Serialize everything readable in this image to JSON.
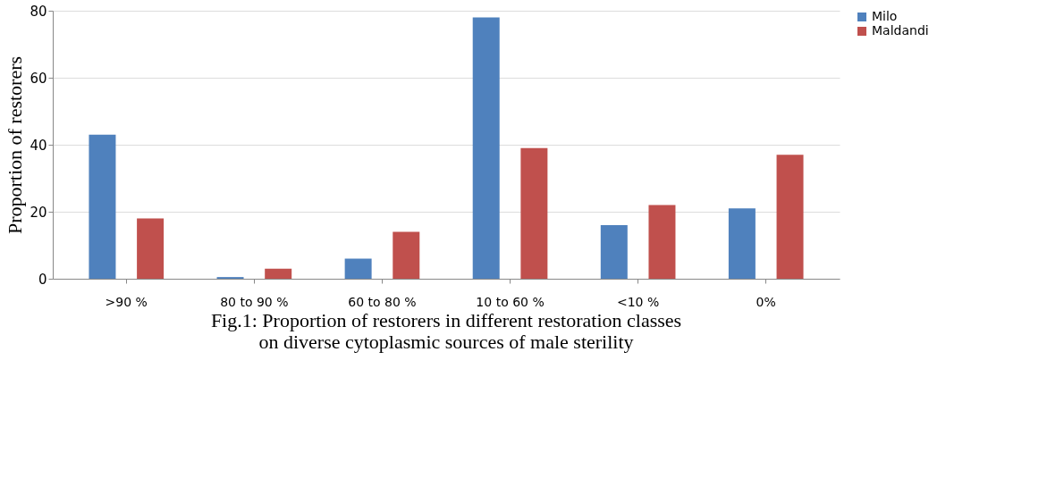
{
  "chart_data": {
    "type": "bar",
    "ylabel": "Proportion of restorers",
    "categories": [
      ">90 %",
      "80 to 90 %",
      "60 to 80 %",
      "10 to 60 %",
      "<10 %",
      "0%"
    ],
    "series": [
      {
        "name": "Milo",
        "color": "#4f81bd",
        "values": [
          43,
          0.5,
          6,
          78,
          16,
          21
        ]
      },
      {
        "name": "Maldandi",
        "color": "#c0504d",
        "values": [
          18,
          3,
          14,
          39,
          22,
          37
        ]
      }
    ],
    "ylim": [
      0,
      80
    ],
    "yticks": [
      0,
      20,
      40,
      60,
      80
    ],
    "grid": "y",
    "legend": "right",
    "annotations": [
      "Fig.1: Proportion of restorers in different restoration classes",
      "on diverse cytoplasmic sources of male sterility"
    ]
  }
}
